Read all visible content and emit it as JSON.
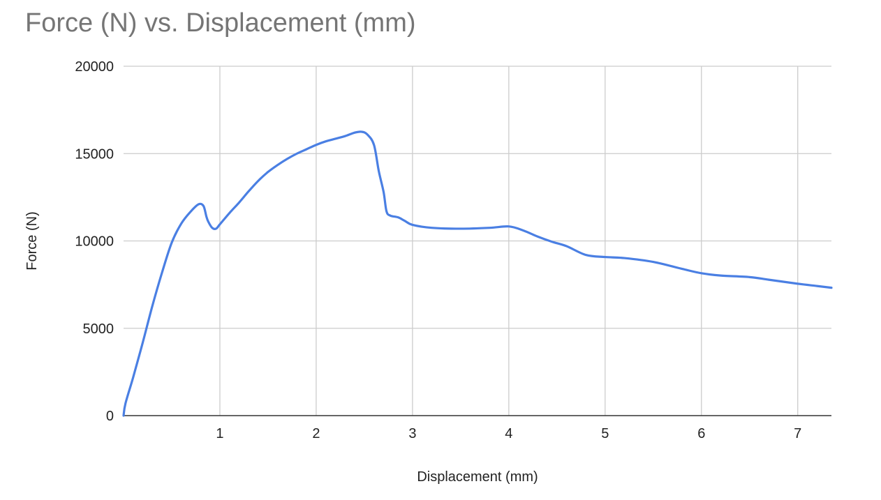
{
  "chart_data": {
    "type": "line",
    "title": "Force (N) vs. Displacement (mm)",
    "xlabel": "Displacement (mm)",
    "ylabel": "Force (N)",
    "xlim": [
      0,
      7.35
    ],
    "ylim": [
      0,
      20000
    ],
    "x_ticks": [
      1,
      2,
      3,
      4,
      5,
      6,
      7
    ],
    "y_ticks": [
      0,
      5000,
      10000,
      15000,
      20000
    ],
    "grid": true,
    "line_color": "#4a7fe3",
    "series": [
      {
        "x": [
          0.0,
          0.02,
          0.1,
          0.2,
          0.3,
          0.4,
          0.5,
          0.6,
          0.7,
          0.78,
          0.83,
          0.86,
          0.88,
          0.92,
          0.96,
          1.0,
          1.1,
          1.2,
          1.3,
          1.4,
          1.5,
          1.6,
          1.7,
          1.8,
          1.9,
          2.0,
          2.1,
          2.2,
          2.3,
          2.4,
          2.47,
          2.53,
          2.6,
          2.65,
          2.7,
          2.73,
          2.77,
          2.85,
          2.92,
          3.0,
          3.2,
          3.5,
          3.8,
          4.0,
          4.15,
          4.3,
          4.45,
          4.6,
          4.8,
          5.0,
          5.2,
          5.5,
          5.8,
          6.0,
          6.2,
          6.5,
          6.7,
          7.0,
          7.2,
          7.35
        ],
        "y": [
          0,
          700,
          2200,
          4200,
          6300,
          8200,
          9900,
          11000,
          11700,
          12100,
          12000,
          11400,
          11100,
          10750,
          10700,
          10950,
          11600,
          12200,
          12850,
          13450,
          13950,
          14350,
          14700,
          15000,
          15250,
          15500,
          15700,
          15850,
          16000,
          16200,
          16250,
          16100,
          15500,
          14000,
          12800,
          11700,
          11450,
          11350,
          11150,
          10920,
          10750,
          10700,
          10750,
          10830,
          10600,
          10250,
          9950,
          9700,
          9200,
          9080,
          9020,
          8800,
          8400,
          8150,
          8020,
          7930,
          7780,
          7550,
          7420,
          7320
        ]
      }
    ]
  }
}
